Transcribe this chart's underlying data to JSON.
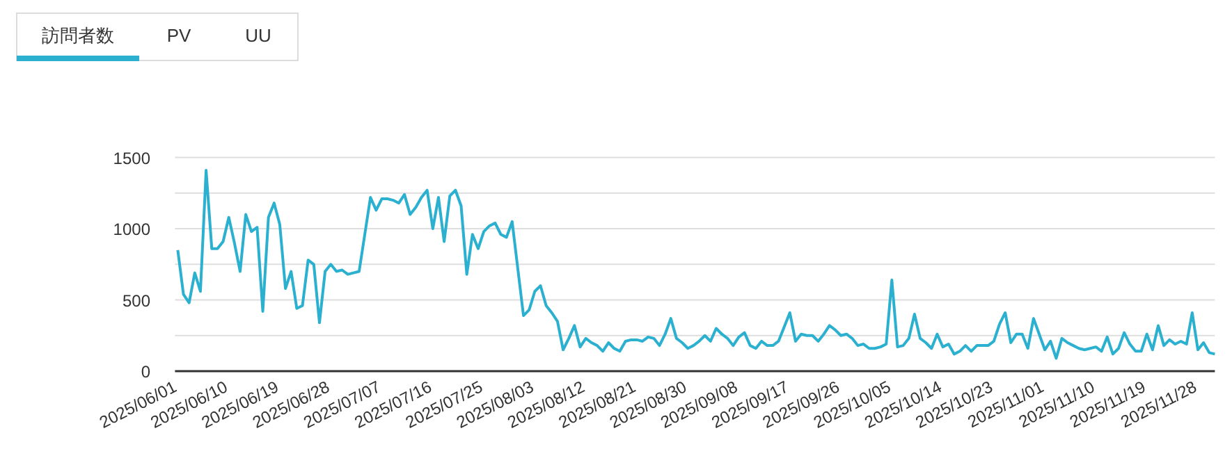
{
  "chart_data": {
    "type": "line",
    "annotations": [
      "訪問者数",
      "PV",
      "UU"
    ],
    "categories": [
      "2025/06/01",
      null,
      null,
      null,
      null,
      null,
      null,
      null,
      null,
      "2025/06/10",
      null,
      null,
      null,
      null,
      null,
      null,
      null,
      null,
      "2025/06/19",
      null,
      null,
      null,
      null,
      null,
      null,
      null,
      null,
      "2025/06/28",
      null,
      null,
      null,
      null,
      null,
      null,
      null,
      null,
      "2025/07/07",
      null,
      null,
      null,
      null,
      null,
      null,
      null,
      null,
      "2025/07/16",
      null,
      null,
      null,
      null,
      null,
      null,
      null,
      null,
      "2025/07/25",
      null,
      null,
      null,
      null,
      null,
      null,
      null,
      null,
      "2025/08/03",
      null,
      null,
      null,
      null,
      null,
      null,
      null,
      null,
      "2025/08/12",
      null,
      null,
      null,
      null,
      null,
      null,
      null,
      null,
      "2025/08/21",
      null,
      null,
      null,
      null,
      null,
      null,
      null,
      null,
      "2025/08/30",
      null,
      null,
      null,
      null,
      null,
      null,
      null,
      null,
      "2025/09/08",
      null,
      null,
      null,
      null,
      null,
      null,
      null,
      null,
      "2025/09/17",
      null,
      null,
      null,
      null,
      null,
      null,
      null,
      null,
      "2025/09/26",
      null,
      null,
      null,
      null,
      null,
      null,
      null,
      null,
      "2025/10/05",
      null,
      null,
      null,
      null,
      null,
      null,
      null,
      null,
      "2025/10/14",
      null,
      null,
      null,
      null,
      null,
      null,
      null,
      null,
      "2025/10/23",
      null,
      null,
      null,
      null,
      null,
      null,
      null,
      null,
      "2025/11/01",
      null,
      null,
      null,
      null,
      null,
      null,
      null,
      null,
      "2025/11/10",
      null,
      null,
      null,
      null,
      null,
      null,
      null,
      null,
      "2025/11/19",
      null,
      null,
      null,
      null,
      null,
      null,
      null,
      null,
      "2025/11/28",
      null,
      null,
      null
    ],
    "series": [
      {
        "color": "#2bb0d0",
        "values": [
          850,
          540,
          480,
          690,
          560,
          1410,
          860,
          860,
          910,
          1080,
          900,
          700,
          1100,
          980,
          1010,
          420,
          1080,
          1180,
          1030,
          580,
          700,
          440,
          460,
          780,
          750,
          340,
          700,
          750,
          700,
          710,
          680,
          690,
          700,
          960,
          1220,
          1130,
          1210,
          1210,
          1200,
          1180,
          1240,
          1100,
          1150,
          1220,
          1270,
          1000,
          1220,
          910,
          1230,
          1270,
          1160,
          680,
          960,
          860,
          980,
          1020,
          1040,
          960,
          940,
          1050,
          720,
          390,
          430,
          560,
          600,
          460,
          410,
          350,
          150,
          230,
          320,
          170,
          230,
          200,
          180,
          140,
          200,
          160,
          140,
          210,
          220,
          220,
          210,
          240,
          230,
          180,
          260,
          370,
          230,
          200,
          160,
          180,
          210,
          250,
          210,
          300,
          260,
          230,
          180,
          240,
          270,
          180,
          160,
          210,
          180,
          180,
          210,
          310,
          410,
          210,
          260,
          250,
          250,
          210,
          260,
          320,
          290,
          250,
          260,
          230,
          180,
          190,
          160,
          160,
          170,
          190,
          640,
          170,
          180,
          230,
          400,
          230,
          200,
          160,
          260,
          170,
          190,
          120,
          140,
          180,
          140,
          180,
          180,
          180,
          210,
          330,
          410,
          200,
          260,
          260,
          160,
          370,
          260,
          150,
          210,
          90,
          230,
          200,
          180,
          160,
          150,
          160,
          170,
          140,
          240,
          120,
          160,
          270,
          190,
          140,
          140,
          260,
          150,
          320,
          180,
          220,
          190,
          210,
          190,
          410,
          150,
          200,
          130,
          120
        ]
      }
    ],
    "ylim": [
      0,
      1500
    ],
    "yticks": [
      0,
      {
        "value": 250,
        "label": null
      },
      500,
      {
        "value": 750,
        "label": null
      },
      1000,
      {
        "value": 1250,
        "label": null
      },
      1500
    ],
    "grid": "y",
    "marker": "none",
    "line_style": "solid"
  }
}
